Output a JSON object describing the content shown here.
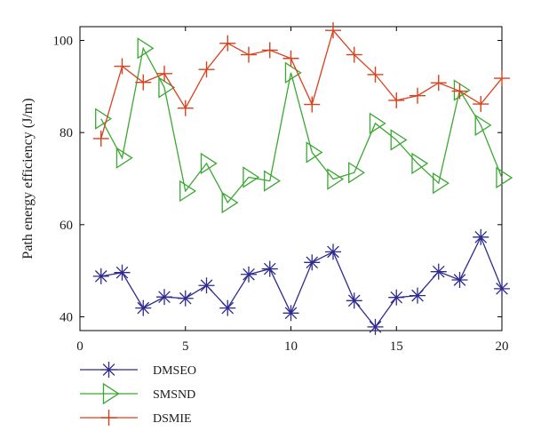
{
  "chart_data": {
    "type": "line",
    "title": "",
    "xlabel": "",
    "ylabel": "Path energy efficiency (J/m)",
    "xlim": [
      0,
      20
    ],
    "ylim": [
      37,
      103
    ],
    "xticks": [
      0,
      5,
      10,
      15,
      20
    ],
    "yticks": [
      40,
      60,
      80,
      100
    ],
    "grid": false,
    "legend_position": "bottom-left, below plot",
    "x": [
      1,
      2,
      3,
      4,
      5,
      6,
      7,
      8,
      9,
      10,
      11,
      12,
      13,
      14,
      15,
      16,
      17,
      18,
      19,
      20
    ],
    "series": [
      {
        "name": "DMSEO",
        "color": "#2e2a8f",
        "marker": "asterisk",
        "values": [
          48.8,
          49.6,
          41.9,
          44.3,
          44.0,
          46.8,
          41.9,
          49.2,
          50.4,
          40.8,
          51.8,
          54.1,
          43.5,
          37.8,
          44.2,
          44.6,
          49.8,
          48.0,
          57.3,
          46.1
        ]
      },
      {
        "name": "SMSND",
        "color": "#3aa832",
        "marker": "triangle-right",
        "values": [
          83.0,
          74.5,
          98.3,
          89.8,
          67.3,
          73.3,
          64.8,
          70.3,
          69.5,
          93.0,
          75.7,
          69.9,
          71.3,
          82.0,
          78.4,
          73.3,
          69.0,
          89.2,
          81.6,
          70.2
        ]
      },
      {
        "name": "DSMIE",
        "color": "#d9411e",
        "marker": "plus",
        "values": [
          78.7,
          94.4,
          90.9,
          92.8,
          85.3,
          93.7,
          99.4,
          96.9,
          97.9,
          96.1,
          86.1,
          102.2,
          96.9,
          92.6,
          87.0,
          88.0,
          90.8,
          89.0,
          86.2,
          91.8
        ]
      }
    ]
  }
}
